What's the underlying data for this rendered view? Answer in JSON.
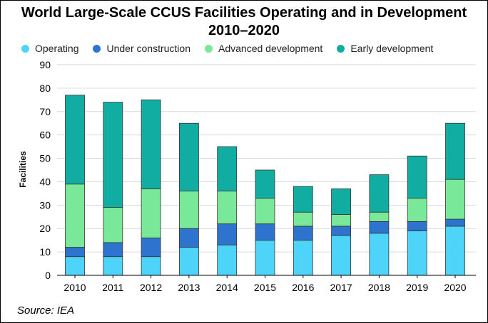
{
  "chart_data": {
    "type": "bar",
    "stacked": true,
    "title_line1": "World Large-Scale CCUS Facilities Operating and in Development",
    "title_line2": "2010–2020",
    "categories": [
      "2010",
      "2011",
      "2012",
      "2013",
      "2014",
      "2015",
      "2016",
      "2017",
      "2018",
      "2019",
      "2020"
    ],
    "series": [
      {
        "name": "Operating",
        "color": "#4dd4f8",
        "values": [
          8,
          8,
          8,
          12,
          13,
          15,
          15,
          17,
          18,
          19,
          21
        ]
      },
      {
        "name": "Under construction",
        "color": "#2e74cf",
        "values": [
          4,
          6,
          8,
          8,
          9,
          7,
          6,
          4,
          5,
          4,
          3
        ]
      },
      {
        "name": "Advanced development",
        "color": "#7ae899",
        "values": [
          27,
          15,
          21,
          16,
          14,
          11,
          6,
          5,
          4,
          10,
          17
        ]
      },
      {
        "name": "Early development",
        "color": "#11ada2",
        "values": [
          38,
          45,
          38,
          29,
          19,
          12,
          11,
          11,
          16,
          18,
          24
        ]
      }
    ],
    "ylabel": "Facilities",
    "xlabel": "",
    "ylim": [
      0,
      90
    ],
    "yticks": [
      0,
      10,
      20,
      30,
      40,
      50,
      60,
      70,
      80,
      90
    ],
    "grid": true,
    "legend_position": "top"
  },
  "source": "Source: IEA"
}
